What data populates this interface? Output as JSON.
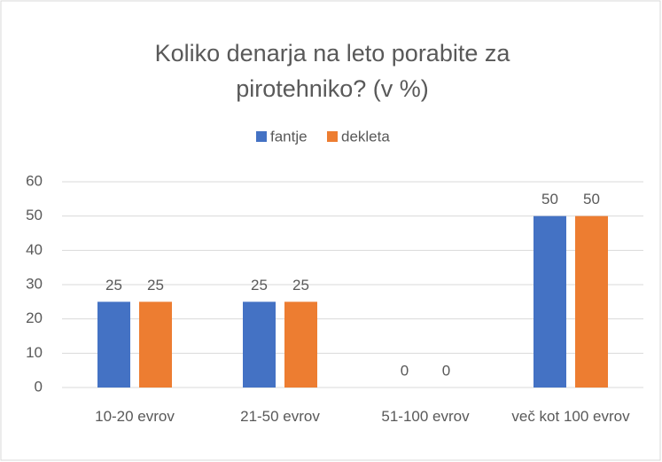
{
  "chart_data": {
    "type": "bar",
    "title": "Koliko denarja na leto porabite za pirotehniko? (v %)",
    "categories": [
      "10-20 evrov",
      "21-50 evrov",
      "51-100 evrov",
      "več kot 100 evrov"
    ],
    "series": [
      {
        "name": "fantje",
        "color": "#4472c4",
        "values": [
          25,
          25,
          0,
          50
        ]
      },
      {
        "name": "dekleta",
        "color": "#ed7d31",
        "values": [
          25,
          25,
          0,
          50
        ]
      }
    ],
    "ylim": [
      0,
      60
    ],
    "yticks": [
      0,
      10,
      20,
      30,
      40,
      50,
      60
    ],
    "grid": true,
    "legend": "top"
  }
}
